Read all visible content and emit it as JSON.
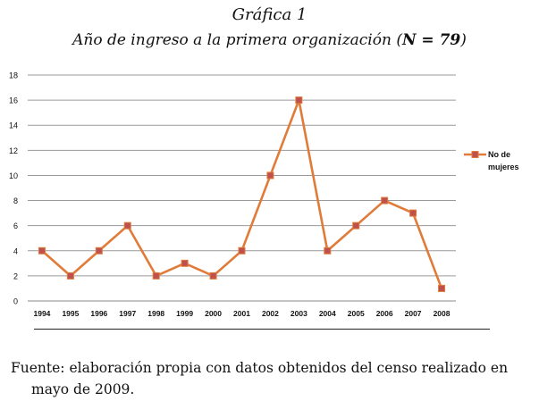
{
  "figure": {
    "label": "Gráfica 1",
    "title_main": "Año de ingreso a la primera organización (",
    "title_n": "N = 79",
    "title_close": ")"
  },
  "chart_data": {
    "type": "line",
    "categories": [
      "1994",
      "1995",
      "1996",
      "1997",
      "1998",
      "1999",
      "2000",
      "2001",
      "2002",
      "2003",
      "2004",
      "2005",
      "2006",
      "2007",
      "2008"
    ],
    "series": [
      {
        "name": "No de mujeres",
        "values": [
          4,
          2,
          4,
          6,
          2,
          3,
          2,
          4,
          10,
          16,
          4,
          6,
          8,
          7,
          1
        ],
        "color": "#E07B39",
        "marker_color": "#C0504D"
      }
    ],
    "ylim": [
      0,
      18
    ],
    "yticks": [
      0,
      2,
      4,
      6,
      8,
      10,
      12,
      14,
      16,
      18
    ],
    "grid": true,
    "legend_position": "right",
    "legend_lines": [
      "No de",
      "mujeres"
    ],
    "xlabel": "",
    "ylabel": "",
    "title": ""
  },
  "source": {
    "line1": "Fuente: elaboración propia con datos obtenidos del censo realizado en",
    "line2": "mayo de 2009."
  }
}
